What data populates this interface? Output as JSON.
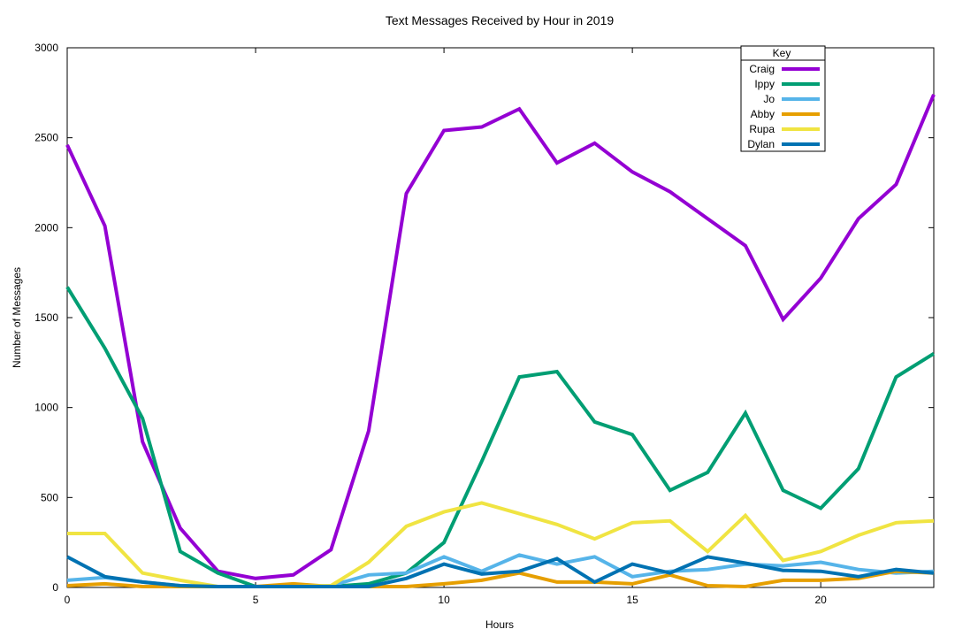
{
  "chart_data": {
    "type": "line",
    "title": "Text Messages Received by Hour in 2019",
    "xlabel": "Hours",
    "ylabel": "Number of Messages",
    "xlim": [
      0,
      23
    ],
    "ylim": [
      0,
      3000
    ],
    "xticks": [
      0,
      5,
      10,
      15,
      20
    ],
    "yticks": [
      0,
      500,
      1000,
      1500,
      2000,
      2500,
      3000
    ],
    "legend": {
      "title": "Key",
      "position": "top-right"
    },
    "x": [
      0,
      1,
      2,
      3,
      4,
      5,
      6,
      7,
      8,
      9,
      10,
      11,
      12,
      13,
      14,
      15,
      16,
      17,
      18,
      19,
      20,
      21,
      22,
      23
    ],
    "series": [
      {
        "name": "Craig",
        "color": "#9400d3",
        "values": [
          2460,
          2010,
          810,
          330,
          90,
          50,
          70,
          210,
          870,
          2190,
          2540,
          2560,
          2660,
          2360,
          2470,
          2310,
          2200,
          2050,
          1900,
          1490,
          1720,
          2050,
          2240,
          2740
        ]
      },
      {
        "name": "Ippy",
        "color": "#009e73",
        "values": [
          1670,
          1330,
          940,
          200,
          80,
          5,
          5,
          5,
          20,
          80,
          250,
          700,
          1170,
          1200,
          920,
          850,
          540,
          640,
          970,
          540,
          440,
          660,
          1170,
          1300
        ]
      },
      {
        "name": "Jo",
        "color": "#56b4e9",
        "values": [
          40,
          55,
          30,
          10,
          5,
          5,
          5,
          10,
          70,
          80,
          170,
          90,
          180,
          130,
          170,
          60,
          90,
          100,
          130,
          120,
          140,
          100,
          80,
          90
        ]
      },
      {
        "name": "Abby",
        "color": "#e69f00",
        "values": [
          10,
          20,
          5,
          5,
          5,
          5,
          20,
          5,
          5,
          5,
          20,
          40,
          80,
          30,
          30,
          20,
          70,
          10,
          5,
          40,
          40,
          50,
          90,
          80
        ]
      },
      {
        "name": "Rupa",
        "color": "#f0e442",
        "values": [
          300,
          300,
          80,
          40,
          5,
          5,
          5,
          10,
          140,
          340,
          420,
          470,
          410,
          350,
          270,
          360,
          370,
          200,
          400,
          150,
          200,
          290,
          360,
          370
        ]
      },
      {
        "name": "Dylan",
        "color": "#0072b2",
        "values": [
          170,
          60,
          30,
          10,
          5,
          5,
          5,
          5,
          5,
          50,
          130,
          75,
          90,
          160,
          30,
          130,
          80,
          170,
          135,
          95,
          90,
          60,
          100,
          80
        ]
      }
    ]
  }
}
